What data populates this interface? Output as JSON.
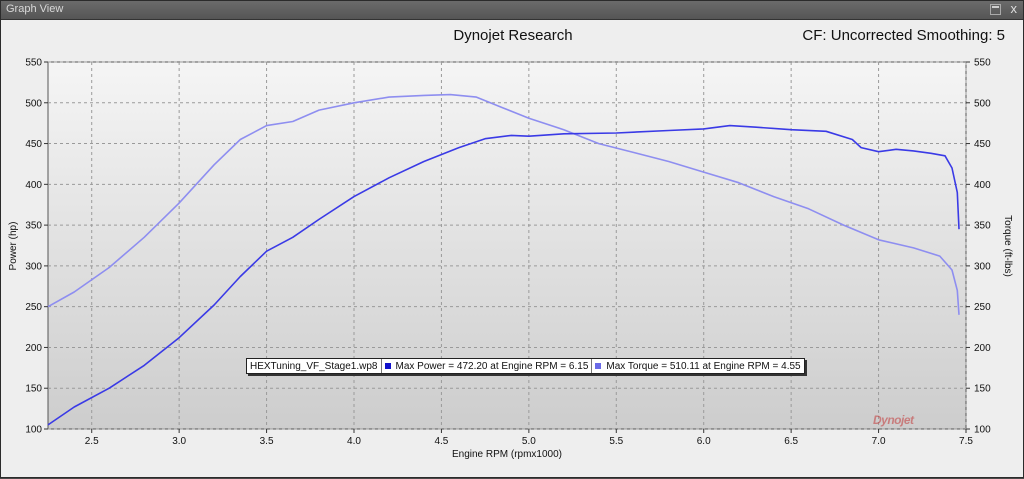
{
  "window": {
    "title": "Graph View",
    "close_glyph": "x"
  },
  "header": {
    "title": "Dynojet Research",
    "cf_text": "CF: Uncorrected Smoothing: 5"
  },
  "legend": {
    "file": "HEXTuning_VF_Stage1.wp8",
    "power": "Max Power = 472.20 at Engine RPM = 6.15",
    "torque": "Max Torque = 510.11 at Engine RPM = 4.55"
  },
  "logo_text": "Dynojet",
  "colors": {
    "power": "#3a3ae6",
    "torque": "#8e8ef0",
    "plot_top": "#f4f4f4",
    "plot_bottom": "#cfcfcf"
  },
  "chart_data": {
    "type": "line",
    "xlabel": "Engine RPM (rpmx1000)",
    "ylabel": "Power (hp)",
    "y2label": "Torque (ft-lbs)",
    "xlim": [
      2.25,
      7.5
    ],
    "ylim": [
      100,
      550
    ],
    "x_ticks": [
      "2.5",
      "3.0",
      "3.5",
      "4.0",
      "4.5",
      "5.0",
      "5.5",
      "6.0",
      "6.5",
      "7.0",
      "7.5"
    ],
    "y_ticks": [
      "100",
      "150",
      "200",
      "250",
      "300",
      "350",
      "400",
      "450",
      "500",
      "550"
    ],
    "grid": true,
    "series": [
      {
        "name": "Power",
        "axis": "left",
        "x": [
          2.25,
          2.4,
          2.6,
          2.8,
          3.0,
          3.2,
          3.35,
          3.5,
          3.65,
          3.8,
          4.0,
          4.2,
          4.4,
          4.6,
          4.75,
          4.9,
          5.0,
          5.2,
          5.5,
          5.8,
          6.0,
          6.15,
          6.3,
          6.5,
          6.7,
          6.85,
          6.9,
          7.0,
          7.1,
          7.2,
          7.3,
          7.38,
          7.42,
          7.45,
          7.46
        ],
        "y": [
          105,
          127,
          150,
          178,
          212,
          252,
          287,
          318,
          335,
          357,
          385,
          408,
          428,
          445,
          456,
          460,
          459,
          462,
          463,
          466,
          468,
          472,
          470,
          467,
          465,
          455,
          445,
          440,
          443,
          441,
          438,
          435,
          420,
          390,
          345
        ]
      },
      {
        "name": "Torque",
        "axis": "right",
        "x": [
          2.25,
          2.4,
          2.6,
          2.8,
          3.0,
          3.2,
          3.35,
          3.5,
          3.65,
          3.8,
          4.0,
          4.2,
          4.4,
          4.55,
          4.7,
          4.85,
          5.0,
          5.2,
          5.4,
          5.6,
          5.8,
          6.0,
          6.2,
          6.4,
          6.6,
          6.8,
          7.0,
          7.2,
          7.35,
          7.42,
          7.45,
          7.46
        ],
        "y": [
          250,
          268,
          298,
          335,
          377,
          424,
          455,
          472,
          477,
          491,
          500,
          507,
          509,
          510,
          507,
          494,
          481,
          467,
          450,
          439,
          428,
          415,
          402,
          385,
          370,
          350,
          332,
          322,
          312,
          295,
          270,
          240
        ]
      }
    ]
  }
}
